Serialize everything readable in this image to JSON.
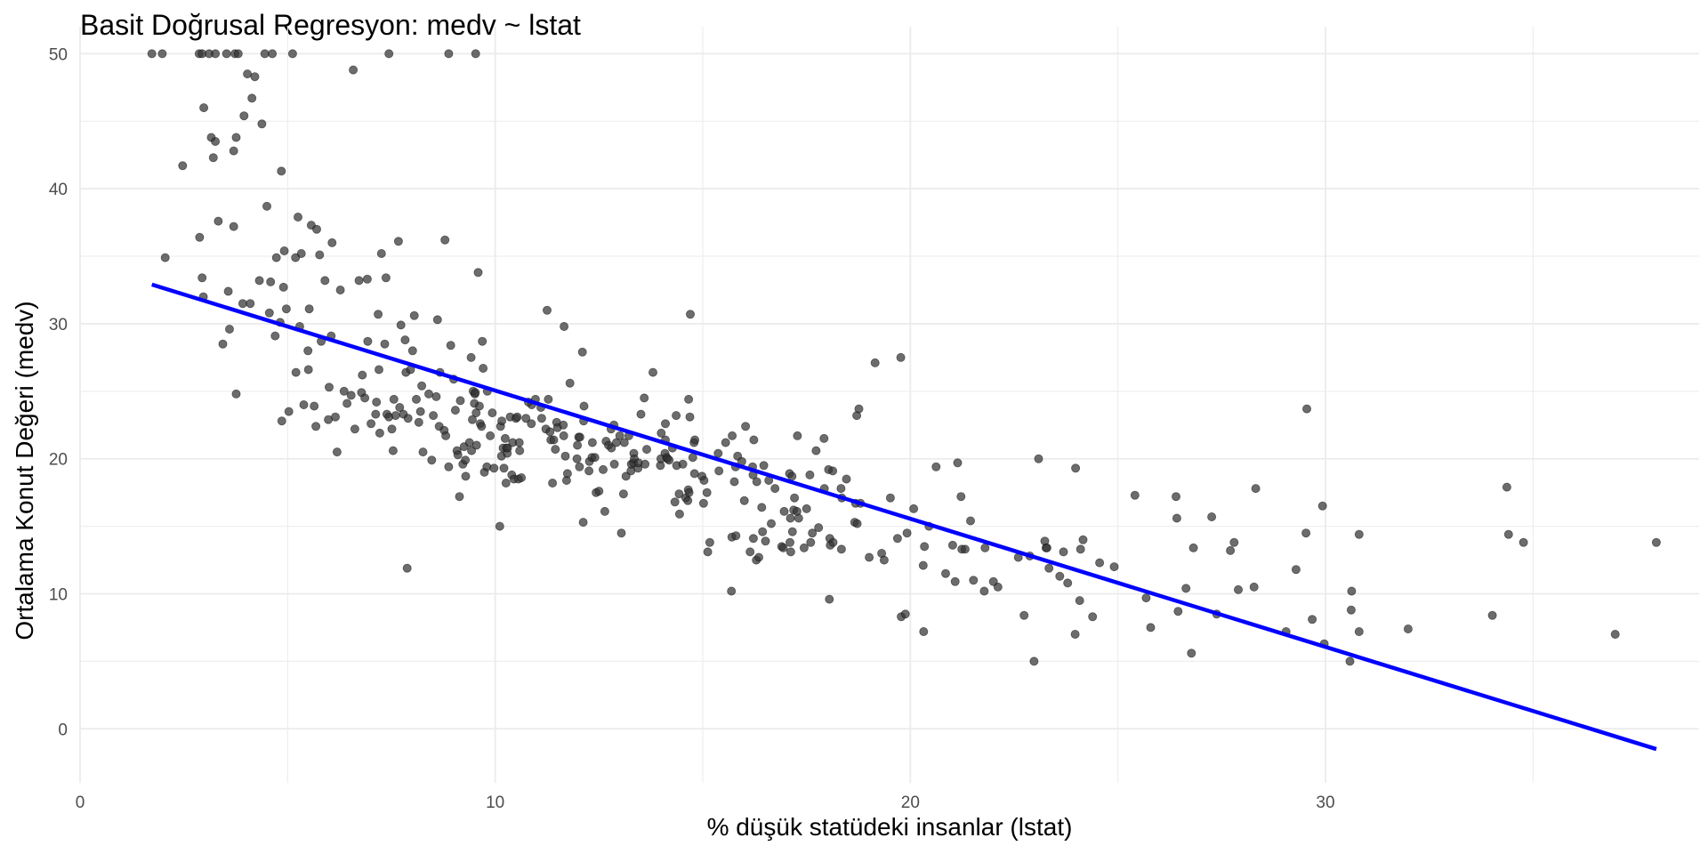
{
  "chart_data": {
    "type": "scatter",
    "title": "Basit Doğrusal Regresyon: medv ~ lstat",
    "xlabel": "% düşük statüdeki insanlar (lstat)",
    "ylabel": "Ortalama Konut Değeri (medv)",
    "xlim": [
      0,
      39
    ],
    "ylim": [
      -4,
      52
    ],
    "xticks": [
      0,
      10,
      20,
      30
    ],
    "yticks": [
      0,
      10,
      20,
      30,
      40,
      50
    ],
    "grid": true,
    "colors": {
      "points": "#333333",
      "regression_line": "#0000ff",
      "grid": "#ebebeb"
    },
    "regression_line": {
      "x": [
        1.73,
        37.97
      ],
      "y": [
        32.9,
        -1.5
      ]
    },
    "points": [
      [
        1.73,
        50
      ],
      [
        1.98,
        50
      ],
      [
        2.87,
        50
      ],
      [
        2.94,
        50
      ],
      [
        3.11,
        50
      ],
      [
        3.26,
        50
      ],
      [
        3.53,
        50
      ],
      [
        3.73,
        50
      ],
      [
        3.81,
        50
      ],
      [
        4.45,
        50
      ],
      [
        4.63,
        50
      ],
      [
        5.12,
        50
      ],
      [
        7.44,
        50
      ],
      [
        8.88,
        50
      ],
      [
        9.53,
        50
      ],
      [
        2.05,
        34.9
      ],
      [
        2.47,
        41.7
      ],
      [
        2.88,
        36.4
      ],
      [
        2.94,
        33.4
      ],
      [
        2.97,
        32.0
      ],
      [
        2.98,
        46.0
      ],
      [
        3.16,
        43.8
      ],
      [
        3.21,
        42.3
      ],
      [
        3.26,
        43.5
      ],
      [
        3.33,
        37.6
      ],
      [
        3.44,
        28.5
      ],
      [
        3.57,
        32.4
      ],
      [
        3.7,
        37.2
      ],
      [
        3.7,
        42.8
      ],
      [
        3.76,
        24.8
      ],
      [
        3.76,
        43.8
      ],
      [
        3.92,
        31.5
      ],
      [
        3.95,
        45.4
      ],
      [
        4.03,
        48.5
      ],
      [
        4.14,
        46.7
      ],
      [
        4.21,
        48.3
      ],
      [
        4.32,
        33.2
      ],
      [
        4.38,
        44.8
      ],
      [
        4.5,
        38.7
      ],
      [
        4.56,
        30.8
      ],
      [
        4.59,
        33.1
      ],
      [
        4.7,
        29.1
      ],
      [
        4.73,
        34.9
      ],
      [
        4.82,
        30.1
      ],
      [
        4.85,
        41.3
      ],
      [
        4.86,
        22.8
      ],
      [
        4.92,
        35.4
      ],
      [
        4.97,
        31.1
      ],
      [
        5.03,
        23.5
      ],
      [
        5.19,
        34.9
      ],
      [
        5.25,
        37.9
      ],
      [
        5.29,
        29.8
      ],
      [
        5.33,
        35.2
      ],
      [
        5.39,
        24.0
      ],
      [
        5.49,
        28.0
      ],
      [
        5.5,
        26.6
      ],
      [
        5.52,
        31.1
      ],
      [
        5.57,
        37.3
      ],
      [
        5.64,
        23.9
      ],
      [
        5.68,
        22.4
      ],
      [
        5.7,
        37.0
      ],
      [
        5.77,
        35.1
      ],
      [
        5.81,
        28.7
      ],
      [
        5.9,
        33.2
      ],
      [
        5.98,
        22.9
      ],
      [
        6.05,
        29.1
      ],
      [
        6.07,
        36.0
      ],
      [
        6.15,
        23.1
      ],
      [
        6.19,
        20.5
      ],
      [
        6.27,
        32.5
      ],
      [
        6.36,
        25.0
      ],
      [
        6.43,
        24.1
      ],
      [
        6.53,
        24.7
      ],
      [
        6.58,
        48.8
      ],
      [
        6.62,
        22.2
      ],
      [
        6.72,
        33.2
      ],
      [
        6.78,
        24.9
      ],
      [
        6.86,
        24.5
      ],
      [
        6.92,
        33.3
      ],
      [
        6.93,
        28.7
      ],
      [
        7.01,
        22.6
      ],
      [
        7.12,
        23.3
      ],
      [
        7.14,
        24.2
      ],
      [
        7.18,
        30.7
      ],
      [
        7.2,
        26.6
      ],
      [
        7.22,
        21.9
      ],
      [
        7.26,
        35.2
      ],
      [
        7.34,
        28.5
      ],
      [
        7.37,
        33.4
      ],
      [
        7.39,
        23.3
      ],
      [
        7.44,
        23.1
      ],
      [
        7.51,
        22.2
      ],
      [
        7.54,
        20.6
      ],
      [
        7.56,
        24.4
      ],
      [
        7.6,
        23.2
      ],
      [
        7.67,
        36.1
      ],
      [
        7.7,
        23.8
      ],
      [
        7.73,
        29.9
      ],
      [
        7.79,
        23.3
      ],
      [
        7.83,
        28.8
      ],
      [
        7.85,
        26.4
      ],
      [
        7.88,
        11.9
      ],
      [
        7.9,
        23.0
      ],
      [
        7.96,
        26.6
      ],
      [
        8.01,
        28.0
      ],
      [
        8.05,
        30.6
      ],
      [
        8.1,
        24.4
      ],
      [
        8.16,
        22.7
      ],
      [
        8.2,
        23.5
      ],
      [
        8.23,
        25.4
      ],
      [
        8.26,
        20.5
      ],
      [
        8.47,
        19.9
      ],
      [
        8.51,
        23.2
      ],
      [
        8.58,
        24.6
      ],
      [
        8.61,
        30.3
      ],
      [
        8.65,
        22.4
      ],
      [
        8.67,
        26.4
      ],
      [
        8.77,
        22.1
      ],
      [
        8.79,
        36.2
      ],
      [
        8.81,
        21.7
      ],
      [
        8.88,
        19.4
      ],
      [
        8.93,
        28.4
      ],
      [
        9.04,
        23.6
      ],
      [
        9.08,
        20.6
      ],
      [
        9.1,
        20.3
      ],
      [
        9.14,
        17.2
      ],
      [
        9.16,
        24.3
      ],
      [
        9.22,
        19.6
      ],
      [
        9.25,
        20.9
      ],
      [
        9.28,
        19.9
      ],
      [
        9.29,
        18.7
      ],
      [
        9.38,
        21.2
      ],
      [
        9.42,
        27.5
      ],
      [
        9.43,
        20.6
      ],
      [
        9.45,
        22.9
      ],
      [
        9.47,
        25.0
      ],
      [
        9.5,
        24.1
      ],
      [
        9.51,
        24.8
      ],
      [
        9.52,
        24.9
      ],
      [
        9.54,
        23.4
      ],
      [
        9.55,
        21.0
      ],
      [
        9.59,
        33.8
      ],
      [
        9.62,
        23.9
      ],
      [
        9.64,
        22.6
      ],
      [
        9.67,
        22.4
      ],
      [
        9.69,
        28.7
      ],
      [
        9.71,
        26.7
      ],
      [
        9.74,
        19.0
      ],
      [
        9.8,
        19.4
      ],
      [
        9.81,
        25.0
      ],
      [
        9.88,
        21.7
      ],
      [
        9.93,
        23.4
      ],
      [
        9.97,
        19.3
      ],
      [
        10.11,
        15.0
      ],
      [
        10.13,
        22.4
      ],
      [
        10.15,
        20.2
      ],
      [
        10.16,
        22.8
      ],
      [
        10.19,
        20.8
      ],
      [
        10.21,
        19.3
      ],
      [
        10.24,
        21.5
      ],
      [
        10.26,
        18.2
      ],
      [
        10.27,
        20.8
      ],
      [
        10.29,
        20.4
      ],
      [
        10.3,
        20.8
      ],
      [
        10.36,
        23.1
      ],
      [
        10.4,
        18.8
      ],
      [
        10.42,
        21.2
      ],
      [
        10.45,
        18.5
      ],
      [
        10.5,
        23.0
      ],
      [
        10.53,
        23.1
      ],
      [
        10.56,
        18.5
      ],
      [
        10.58,
        21.2
      ],
      [
        10.59,
        20.6
      ],
      [
        10.63,
        18.6
      ],
      [
        10.74,
        23.0
      ],
      [
        10.87,
        22.6
      ],
      [
        10.88,
        24.0
      ],
      [
        10.97,
        24.4
      ],
      [
        11.1,
        23.8
      ],
      [
        11.12,
        23.0
      ],
      [
        11.22,
        22.2
      ],
      [
        11.25,
        31.0
      ],
      [
        11.28,
        24.4
      ],
      [
        11.32,
        22.0
      ],
      [
        11.34,
        21.4
      ],
      [
        11.38,
        18.2
      ],
      [
        11.41,
        21.4
      ],
      [
        11.45,
        20.7
      ],
      [
        11.48,
        22.7
      ],
      [
        11.5,
        22.3
      ],
      [
        11.64,
        22.5
      ],
      [
        11.65,
        21.7
      ],
      [
        11.66,
        29.8
      ],
      [
        11.69,
        20.2
      ],
      [
        11.72,
        18.4
      ],
      [
        11.74,
        18.9
      ],
      [
        11.97,
        20.0
      ],
      [
        11.98,
        21.0
      ],
      [
        12.01,
        21.6
      ],
      [
        12.03,
        19.4
      ],
      [
        12.04,
        21.6
      ],
      [
        12.12,
        15.3
      ],
      [
        12.13,
        22.8
      ],
      [
        12.14,
        23.9
      ],
      [
        12.26,
        19.1
      ],
      [
        12.27,
        19.8
      ],
      [
        12.33,
        20.1
      ],
      [
        12.34,
        21.2
      ],
      [
        12.4,
        20.1
      ],
      [
        12.43,
        17.5
      ],
      [
        12.5,
        17.6
      ],
      [
        12.6,
        19.2
      ],
      [
        12.64,
        16.1
      ],
      [
        12.67,
        21.3
      ],
      [
        12.73,
        21.0
      ],
      [
        12.79,
        22.2
      ],
      [
        12.8,
        20.8
      ],
      [
        12.86,
        22.5
      ],
      [
        12.87,
        19.6
      ],
      [
        12.92,
        21.2
      ],
      [
        13.0,
        21.7
      ],
      [
        13.04,
        14.5
      ],
      [
        13.09,
        17.4
      ],
      [
        13.11,
        21.2
      ],
      [
        13.15,
        18.7
      ],
      [
        13.22,
        21.7
      ],
      [
        13.27,
        19.1
      ],
      [
        13.28,
        19.6
      ],
      [
        13.33,
        19.7
      ],
      [
        13.34,
        20.4
      ],
      [
        13.35,
        20.0
      ],
      [
        13.44,
        19.3
      ],
      [
        13.45,
        19.7
      ],
      [
        13.51,
        23.3
      ],
      [
        13.59,
        24.5
      ],
      [
        13.61,
        19.6
      ],
      [
        13.65,
        20.7
      ],
      [
        13.98,
        19.5
      ],
      [
        13.99,
        20.0
      ],
      [
        14.0,
        21.9
      ],
      [
        14.09,
        20.4
      ],
      [
        14.1,
        21.4
      ],
      [
        14.13,
        20.1
      ],
      [
        14.15,
        20.0
      ],
      [
        14.19,
        19.9
      ],
      [
        14.27,
        20.8
      ],
      [
        14.33,
        16.8
      ],
      [
        14.36,
        23.2
      ],
      [
        14.37,
        19.5
      ],
      [
        14.43,
        17.4
      ],
      [
        14.44,
        15.9
      ],
      [
        14.52,
        19.6
      ],
      [
        14.59,
        17.1
      ],
      [
        14.64,
        16.9
      ],
      [
        14.65,
        17.7
      ],
      [
        14.66,
        24.4
      ],
      [
        14.67,
        17.5
      ],
      [
        14.69,
        23.1
      ],
      [
        14.7,
        30.7
      ],
      [
        14.76,
        20.1
      ],
      [
        14.79,
        21.2
      ],
      [
        14.8,
        18.9
      ],
      [
        14.81,
        21.4
      ],
      [
        14.98,
        18.7
      ],
      [
        15.02,
        16.7
      ],
      [
        15.03,
        18.4
      ],
      [
        15.1,
        17.5
      ],
      [
        15.12,
        13.1
      ],
      [
        15.17,
        13.8
      ],
      [
        15.37,
        20.4
      ],
      [
        15.39,
        19.1
      ],
      [
        15.55,
        21.2
      ],
      [
        15.69,
        10.2
      ],
      [
        15.7,
        14.2
      ],
      [
        15.71,
        21.7
      ],
      [
        15.76,
        18.3
      ],
      [
        15.79,
        19.4
      ],
      [
        15.84,
        20.2
      ],
      [
        15.94,
        19.8
      ],
      [
        16.03,
        22.4
      ],
      [
        16.14,
        13.1
      ],
      [
        16.2,
        19.4
      ],
      [
        16.21,
        18.8
      ],
      [
        16.22,
        14.1
      ],
      [
        16.23,
        21.4
      ],
      [
        16.29,
        12.5
      ],
      [
        16.3,
        18.3
      ],
      [
        16.35,
        12.7
      ],
      [
        16.42,
        16.4
      ],
      [
        16.44,
        14.6
      ],
      [
        16.47,
        19.5
      ],
      [
        16.51,
        13.9
      ],
      [
        16.59,
        18.4
      ],
      [
        16.65,
        15.2
      ],
      [
        16.74,
        17.8
      ],
      [
        16.9,
        13.5
      ],
      [
        16.94,
        13.4
      ],
      [
        16.96,
        16.1
      ],
      [
        17.09,
        18.9
      ],
      [
        17.1,
        13.8
      ],
      [
        17.11,
        15.6
      ],
      [
        17.12,
        13.1
      ],
      [
        17.15,
        18.7
      ],
      [
        17.16,
        14.6
      ],
      [
        17.19,
        16.2
      ],
      [
        17.21,
        17.1
      ],
      [
        17.27,
        16.1
      ],
      [
        17.28,
        21.7
      ],
      [
        17.31,
        15.6
      ],
      [
        17.44,
        13.4
      ],
      [
        17.58,
        18.8
      ],
      [
        17.6,
        13.8
      ],
      [
        17.64,
        14.5
      ],
      [
        17.73,
        20.6
      ],
      [
        17.79,
        14.9
      ],
      [
        17.92,
        21.5
      ],
      [
        17.93,
        17.8
      ],
      [
        18.03,
        19.2
      ],
      [
        18.05,
        9.6
      ],
      [
        18.06,
        14.1
      ],
      [
        18.07,
        13.6
      ],
      [
        18.13,
        19.1
      ],
      [
        18.14,
        13.8
      ],
      [
        18.33,
        17.8
      ],
      [
        18.34,
        13.3
      ],
      [
        18.35,
        17.1
      ],
      [
        18.46,
        18.5
      ],
      [
        18.66,
        15.3
      ],
      [
        18.68,
        16.7
      ],
      [
        18.71,
        23.2
      ],
      [
        18.72,
        15.2
      ],
      [
        18.76,
        23.7
      ],
      [
        18.8,
        16.7
      ],
      [
        19.01,
        12.7
      ],
      [
        19.15,
        27.1
      ],
      [
        19.31,
        13.0
      ],
      [
        19.37,
        12.5
      ],
      [
        19.52,
        17.1
      ],
      [
        19.69,
        14.1
      ],
      [
        19.77,
        27.5
      ],
      [
        19.78,
        8.3
      ],
      [
        19.88,
        8.5
      ],
      [
        19.92,
        14.5
      ],
      [
        20.08,
        16.3
      ],
      [
        20.31,
        12.1
      ],
      [
        20.32,
        7.2
      ],
      [
        20.34,
        13.5
      ],
      [
        20.45,
        15.0
      ],
      [
        20.62,
        19.4
      ],
      [
        20.85,
        11.5
      ],
      [
        21.02,
        13.6
      ],
      [
        21.08,
        10.9
      ],
      [
        21.14,
        19.7
      ],
      [
        21.22,
        17.2
      ],
      [
        21.24,
        13.3
      ],
      [
        21.32,
        13.3
      ],
      [
        21.45,
        15.4
      ],
      [
        21.52,
        11.0
      ],
      [
        21.78,
        10.2
      ],
      [
        22.11,
        10.5
      ],
      [
        22.6,
        12.7
      ],
      [
        22.74,
        8.4
      ],
      [
        22.88,
        12.8
      ],
      [
        22.98,
        5.0
      ],
      [
        23.09,
        20.0
      ],
      [
        23.24,
        13.9
      ],
      [
        23.27,
        13.4
      ],
      [
        23.29,
        13.4
      ],
      [
        23.34,
        11.9
      ],
      [
        23.6,
        11.3
      ],
      [
        23.69,
        13.1
      ],
      [
        23.79,
        10.8
      ],
      [
        23.97,
        7.0
      ],
      [
        23.98,
        19.3
      ],
      [
        24.08,
        9.5
      ],
      [
        24.1,
        13.3
      ],
      [
        24.16,
        14.0
      ],
      [
        24.39,
        8.3
      ],
      [
        24.56,
        12.3
      ],
      [
        24.91,
        12.0
      ],
      [
        25.41,
        17.3
      ],
      [
        25.68,
        9.7
      ],
      [
        25.79,
        7.5
      ],
      [
        26.42,
        15.6
      ],
      [
        26.45,
        8.7
      ],
      [
        26.64,
        10.4
      ],
      [
        26.77,
        5.6
      ],
      [
        26.82,
        13.4
      ],
      [
        27.26,
        15.7
      ],
      [
        27.38,
        8.5
      ],
      [
        27.71,
        13.2
      ],
      [
        27.8,
        13.8
      ],
      [
        28.28,
        10.5
      ],
      [
        28.32,
        17.8
      ],
      [
        29.05,
        7.2
      ],
      [
        29.29,
        11.8
      ],
      [
        29.53,
        14.5
      ],
      [
        29.55,
        23.7
      ],
      [
        29.68,
        8.1
      ],
      [
        29.93,
        16.5
      ],
      [
        29.97,
        6.3
      ],
      [
        30.59,
        5.0
      ],
      [
        30.62,
        8.8
      ],
      [
        30.63,
        10.2
      ],
      [
        30.81,
        14.4
      ],
      [
        30.81,
        7.2
      ],
      [
        31.99,
        7.4
      ],
      [
        34.02,
        8.4
      ],
      [
        34.37,
        17.9
      ],
      [
        34.41,
        14.4
      ],
      [
        34.77,
        13.8
      ],
      [
        36.98,
        7.0
      ],
      [
        37.97,
        13.8
      ],
      [
        26.4,
        17.2
      ],
      [
        27.9,
        10.3
      ],
      [
        22.0,
        10.9
      ],
      [
        21.8,
        13.4
      ],
      [
        17.5,
        16.3
      ],
      [
        15.8,
        14.3
      ],
      [
        16.0,
        16.9
      ],
      [
        14.1,
        22.6
      ],
      [
        13.8,
        26.4
      ],
      [
        12.1,
        27.9
      ],
      [
        11.8,
        25.6
      ],
      [
        10.8,
        24.2
      ],
      [
        9.0,
        25.9
      ],
      [
        8.4,
        24.8
      ],
      [
        6.8,
        26.2
      ],
      [
        6.0,
        25.3
      ],
      [
        5.2,
        26.4
      ],
      [
        4.9,
        32.7
      ],
      [
        4.1,
        31.5
      ],
      [
        3.6,
        29.6
      ]
    ]
  }
}
